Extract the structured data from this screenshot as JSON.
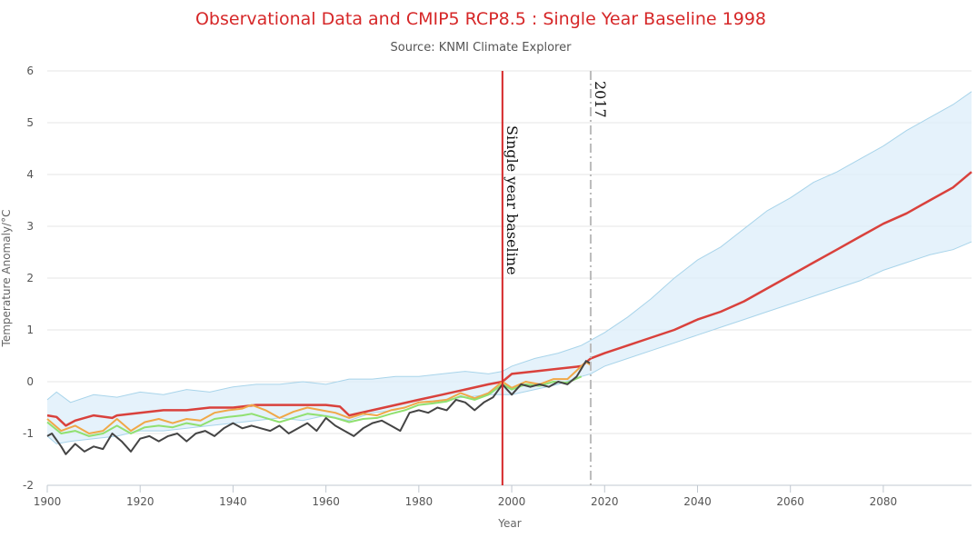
{
  "chart_data": {
    "type": "line",
    "title": "Observational Data and CMIP5 RCP8.5 : Single Year Baseline 1998",
    "subtitle": "Source: KNMI Climate Explorer",
    "xlabel": "Year",
    "ylabel": "Temperature Anomaly/°C",
    "xlim": [
      1900,
      2099
    ],
    "ylim": [
      -2,
      6
    ],
    "x_ticks": [
      1900,
      1920,
      1940,
      1960,
      1980,
      2000,
      2020,
      2040,
      2060,
      2080
    ],
    "y_ticks": [
      -2,
      -1,
      0,
      1,
      2,
      3,
      4,
      5,
      6
    ],
    "grid": "horizontal",
    "legend": "none",
    "annotations": [
      {
        "label": "Single year baseline",
        "x": 1998,
        "style": "solid",
        "color": "#d62728"
      },
      {
        "label": "2017",
        "x": 2017,
        "style": "dash-dot",
        "color": "#bbbbbb"
      }
    ],
    "series": [
      {
        "type": "band",
        "color": "#dceefa",
        "edge_color": "#a8d4ea",
        "x": [
          1900,
          1902,
          1905,
          1910,
          1915,
          1920,
          1925,
          1930,
          1935,
          1940,
          1945,
          1950,
          1955,
          1960,
          1965,
          1970,
          1975,
          1980,
          1985,
          1990,
          1995,
          1998,
          2000,
          2005,
          2010,
          2015,
          2017,
          2020,
          2025,
          2030,
          2035,
          2040,
          2045,
          2050,
          2055,
          2060,
          2065,
          2070,
          2075,
          2080,
          2085,
          2090,
          2095,
          2099
        ],
        "low": [
          -1.05,
          -1.2,
          -1.15,
          -1.1,
          -1.05,
          -0.95,
          -0.95,
          -0.9,
          -0.85,
          -0.8,
          -0.75,
          -0.7,
          -0.75,
          -0.65,
          -0.75,
          -0.6,
          -0.55,
          -0.4,
          -0.35,
          -0.3,
          -0.25,
          -0.25,
          -0.25,
          -0.15,
          -0.05,
          0.1,
          0.15,
          0.3,
          0.45,
          0.6,
          0.75,
          0.9,
          1.05,
          1.2,
          1.35,
          1.5,
          1.65,
          1.8,
          1.95,
          2.15,
          2.3,
          2.45,
          2.55,
          2.7
        ],
        "high": [
          -0.35,
          -0.2,
          -0.4,
          -0.25,
          -0.3,
          -0.2,
          -0.25,
          -0.15,
          -0.2,
          -0.1,
          -0.05,
          -0.05,
          0.0,
          -0.05,
          0.05,
          0.05,
          0.1,
          0.1,
          0.15,
          0.2,
          0.15,
          0.2,
          0.3,
          0.45,
          0.55,
          0.7,
          0.8,
          0.95,
          1.25,
          1.6,
          2.0,
          2.35,
          2.6,
          2.95,
          3.3,
          3.55,
          3.85,
          4.05,
          4.3,
          4.55,
          4.85,
          5.1,
          5.35,
          5.6
        ]
      },
      {
        "type": "line",
        "color": "#d9413c",
        "width": 2.5,
        "x": [
          1900,
          1902,
          1904,
          1906,
          1910,
          1914,
          1915,
          1920,
          1925,
          1930,
          1935,
          1940,
          1945,
          1950,
          1955,
          1960,
          1963,
          1965,
          1970,
          1975,
          1980,
          1985,
          1990,
          1995,
          1998,
          2000,
          2005,
          2010,
          2015,
          2017,
          2020,
          2025,
          2030,
          2035,
          2040,
          2045,
          2050,
          2055,
          2060,
          2065,
          2070,
          2075,
          2080,
          2085,
          2090,
          2095,
          2099
        ],
        "y": [
          -0.65,
          -0.68,
          -0.85,
          -0.75,
          -0.65,
          -0.7,
          -0.65,
          -0.6,
          -0.55,
          -0.55,
          -0.5,
          -0.5,
          -0.45,
          -0.45,
          -0.45,
          -0.45,
          -0.48,
          -0.65,
          -0.55,
          -0.45,
          -0.35,
          -0.25,
          -0.15,
          -0.05,
          0.0,
          0.15,
          0.2,
          0.25,
          0.3,
          0.45,
          0.55,
          0.7,
          0.85,
          1.0,
          1.2,
          1.35,
          1.55,
          1.8,
          2.05,
          2.3,
          2.55,
          2.8,
          3.05,
          3.25,
          3.5,
          3.75,
          4.05
        ]
      },
      {
        "type": "line",
        "color": "#f0a848",
        "width": 2,
        "x": [
          1900,
          1903,
          1906,
          1909,
          1912,
          1915,
          1918,
          1921,
          1924,
          1927,
          1930,
          1933,
          1936,
          1939,
          1942,
          1944,
          1947,
          1950,
          1953,
          1956,
          1959,
          1962,
          1965,
          1968,
          1971,
          1974,
          1977,
          1980,
          1983,
          1986,
          1989,
          1992,
          1995,
          1998,
          2000,
          2003,
          2006,
          2009,
          2012,
          2015,
          2016,
          2017
        ],
        "y": [
          -0.72,
          -0.95,
          -0.85,
          -1.0,
          -0.95,
          -0.72,
          -0.95,
          -0.78,
          -0.72,
          -0.8,
          -0.72,
          -0.75,
          -0.6,
          -0.55,
          -0.52,
          -0.45,
          -0.55,
          -0.7,
          -0.58,
          -0.5,
          -0.55,
          -0.6,
          -0.7,
          -0.62,
          -0.65,
          -0.55,
          -0.5,
          -0.4,
          -0.38,
          -0.35,
          -0.22,
          -0.32,
          -0.22,
          0.0,
          -0.12,
          0.0,
          -0.05,
          0.05,
          0.05,
          0.3,
          0.38,
          0.32
        ]
      },
      {
        "type": "line",
        "color": "#90e070",
        "width": 2,
        "x": [
          1900,
          1903,
          1906,
          1909,
          1912,
          1915,
          1918,
          1921,
          1924,
          1927,
          1930,
          1933,
          1936,
          1939,
          1942,
          1944,
          1947,
          1950,
          1953,
          1956,
          1959,
          1962,
          1965,
          1968,
          1971,
          1974,
          1977,
          1980,
          1983,
          1986,
          1989,
          1992,
          1995,
          1998,
          2000,
          2003,
          2006,
          2009,
          2012,
          2015
        ],
        "y": [
          -0.78,
          -1.0,
          -0.95,
          -1.05,
          -1.0,
          -0.85,
          -1.0,
          -0.88,
          -0.85,
          -0.88,
          -0.8,
          -0.85,
          -0.72,
          -0.68,
          -0.65,
          -0.62,
          -0.7,
          -0.78,
          -0.7,
          -0.62,
          -0.65,
          -0.7,
          -0.78,
          -0.72,
          -0.7,
          -0.62,
          -0.55,
          -0.45,
          -0.42,
          -0.38,
          -0.28,
          -0.35,
          -0.25,
          -0.05,
          -0.15,
          -0.05,
          -0.08,
          0.0,
          -0.02,
          0.1
        ]
      },
      {
        "type": "line",
        "color": "#444444",
        "width": 2,
        "x": [
          1900,
          1901,
          1903,
          1904,
          1906,
          1908,
          1910,
          1912,
          1914,
          1916,
          1918,
          1920,
          1922,
          1924,
          1926,
          1928,
          1930,
          1932,
          1934,
          1936,
          1938,
          1940,
          1942,
          1944,
          1946,
          1948,
          1950,
          1952,
          1954,
          1956,
          1958,
          1960,
          1962,
          1964,
          1966,
          1968,
          1970,
          1972,
          1974,
          1976,
          1978,
          1980,
          1982,
          1984,
          1986,
          1988,
          1990,
          1992,
          1994,
          1996,
          1998,
          2000,
          2002,
          2004,
          2006,
          2008,
          2010,
          2012,
          2014,
          2016,
          2017
        ],
        "y": [
          -1.05,
          -1.0,
          -1.25,
          -1.4,
          -1.2,
          -1.35,
          -1.25,
          -1.3,
          -1.0,
          -1.15,
          -1.35,
          -1.1,
          -1.05,
          -1.15,
          -1.05,
          -1.0,
          -1.15,
          -1.0,
          -0.95,
          -1.05,
          -0.9,
          -0.8,
          -0.9,
          -0.85,
          -0.9,
          -0.95,
          -0.85,
          -1.0,
          -0.9,
          -0.8,
          -0.95,
          -0.7,
          -0.85,
          -0.95,
          -1.05,
          -0.9,
          -0.8,
          -0.75,
          -0.85,
          -0.95,
          -0.6,
          -0.55,
          -0.6,
          -0.5,
          -0.55,
          -0.35,
          -0.4,
          -0.55,
          -0.4,
          -0.3,
          -0.05,
          -0.25,
          -0.05,
          -0.1,
          -0.05,
          -0.1,
          0.0,
          -0.05,
          0.1,
          0.4,
          0.35
        ]
      }
    ]
  }
}
